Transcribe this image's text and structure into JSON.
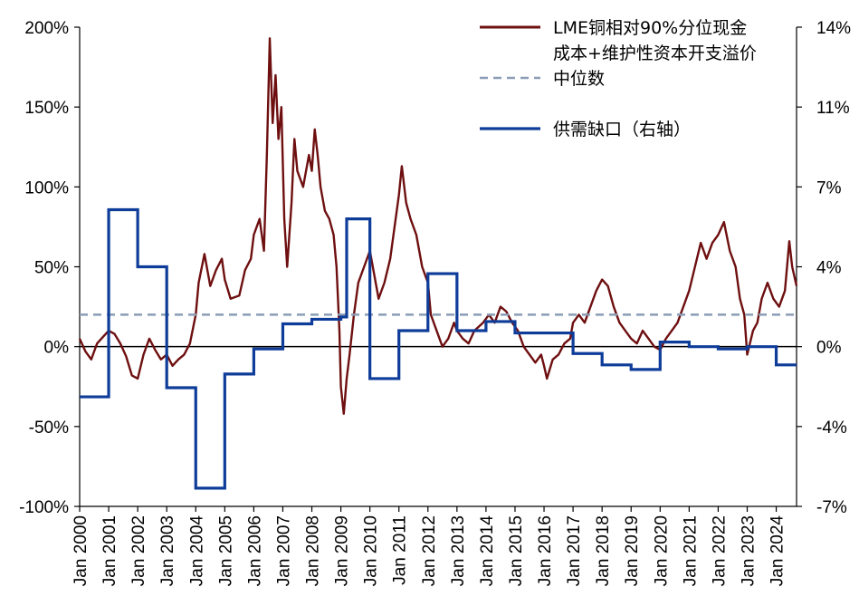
{
  "chart_data": {
    "type": "line",
    "x_range": [
      "Jan 2000",
      "Jun 2024"
    ],
    "x_tick_labels": [
      "Jan 2000",
      "Jan 2001",
      "Jan 2002",
      "Jan 2003",
      "Jan 2004",
      "Jan 2005",
      "Jan 2006",
      "Jan 2007",
      "Jan 2008",
      "Jan 2009",
      "Jan 2010",
      "Jan 2011",
      "Jan 2012",
      "Jan 2013",
      "Jan 2014",
      "Jan 2015",
      "Jan 2016",
      "Jan 2017",
      "Jan 2018",
      "Jan 2019",
      "Jan 2020",
      "Jan 2021",
      "Jan 2022",
      "Jan 2023",
      "Jan 2024"
    ],
    "y_left": {
      "min": -100,
      "max": 200,
      "step": 50,
      "tick_labels": [
        "200%",
        "150%",
        "100%",
        "50%",
        "0%",
        "-50%",
        "-100%"
      ]
    },
    "y_right": {
      "min": -7,
      "max": 14,
      "step": 3.5,
      "tick_labels": [
        "14%",
        "11%",
        "7%",
        "4%",
        "0%",
        "-4%",
        "-7%"
      ]
    },
    "series": [
      {
        "name": "LME铜相对90%分位现金成本+维护性资本开支溢价",
        "legend_lines": [
          "LME铜相对90%分位现金成本+维护性资本开支溢价"
        ],
        "axis": "left",
        "color": "#6e0f10",
        "style": "solid",
        "points": [
          [
            2000.0,
            5
          ],
          [
            2000.2,
            -3
          ],
          [
            2000.4,
            -8
          ],
          [
            2000.6,
            2
          ],
          [
            2000.8,
            6
          ],
          [
            2001.0,
            10
          ],
          [
            2001.2,
            8
          ],
          [
            2001.4,
            2
          ],
          [
            2001.6,
            -6
          ],
          [
            2001.8,
            -18
          ],
          [
            2002.0,
            -20
          ],
          [
            2002.2,
            -5
          ],
          [
            2002.4,
            5
          ],
          [
            2002.6,
            -2
          ],
          [
            2002.8,
            -8
          ],
          [
            2003.0,
            -5
          ],
          [
            2003.2,
            -12
          ],
          [
            2003.4,
            -8
          ],
          [
            2003.6,
            -5
          ],
          [
            2003.8,
            2
          ],
          [
            2004.0,
            20
          ],
          [
            2004.1,
            40
          ],
          [
            2004.3,
            58
          ],
          [
            2004.5,
            38
          ],
          [
            2004.7,
            48
          ],
          [
            2004.9,
            55
          ],
          [
            2005.0,
            42
          ],
          [
            2005.2,
            30
          ],
          [
            2005.5,
            32
          ],
          [
            2005.7,
            48
          ],
          [
            2005.9,
            55
          ],
          [
            2006.0,
            70
          ],
          [
            2006.2,
            80
          ],
          [
            2006.35,
            60
          ],
          [
            2006.45,
            120
          ],
          [
            2006.55,
            193
          ],
          [
            2006.65,
            140
          ],
          [
            2006.75,
            170
          ],
          [
            2006.85,
            130
          ],
          [
            2006.95,
            150
          ],
          [
            2007.05,
            80
          ],
          [
            2007.15,
            50
          ],
          [
            2007.3,
            90
          ],
          [
            2007.4,
            130
          ],
          [
            2007.5,
            110
          ],
          [
            2007.7,
            100
          ],
          [
            2007.9,
            120
          ],
          [
            2008.0,
            110
          ],
          [
            2008.1,
            136
          ],
          [
            2008.2,
            120
          ],
          [
            2008.3,
            100
          ],
          [
            2008.45,
            85
          ],
          [
            2008.6,
            80
          ],
          [
            2008.75,
            70
          ],
          [
            2008.85,
            50
          ],
          [
            2008.95,
            10
          ],
          [
            2009.0,
            -25
          ],
          [
            2009.1,
            -42
          ],
          [
            2009.2,
            -20
          ],
          [
            2009.3,
            -5
          ],
          [
            2009.45,
            20
          ],
          [
            2009.6,
            40
          ],
          [
            2009.8,
            50
          ],
          [
            2010.0,
            60
          ],
          [
            2010.15,
            45
          ],
          [
            2010.3,
            30
          ],
          [
            2010.5,
            40
          ],
          [
            2010.7,
            55
          ],
          [
            2010.85,
            75
          ],
          [
            2011.0,
            95
          ],
          [
            2011.1,
            113
          ],
          [
            2011.25,
            90
          ],
          [
            2011.4,
            80
          ],
          [
            2011.6,
            70
          ],
          [
            2011.8,
            50
          ],
          [
            2012.0,
            40
          ],
          [
            2012.1,
            20
          ],
          [
            2012.3,
            10
          ],
          [
            2012.5,
            0
          ],
          [
            2012.7,
            5
          ],
          [
            2012.9,
            15
          ],
          [
            2013.0,
            10
          ],
          [
            2013.2,
            5
          ],
          [
            2013.4,
            2
          ],
          [
            2013.6,
            10
          ],
          [
            2013.9,
            15
          ],
          [
            2014.1,
            20
          ],
          [
            2014.3,
            15
          ],
          [
            2014.5,
            25
          ],
          [
            2014.7,
            22
          ],
          [
            2014.9,
            15
          ],
          [
            2015.1,
            10
          ],
          [
            2015.3,
            0
          ],
          [
            2015.5,
            -5
          ],
          [
            2015.7,
            -10
          ],
          [
            2015.9,
            -5
          ],
          [
            2016.0,
            -12
          ],
          [
            2016.1,
            -20
          ],
          [
            2016.3,
            -8
          ],
          [
            2016.5,
            -5
          ],
          [
            2016.7,
            2
          ],
          [
            2016.9,
            5
          ],
          [
            2017.0,
            15
          ],
          [
            2017.2,
            20
          ],
          [
            2017.4,
            15
          ],
          [
            2017.6,
            25
          ],
          [
            2017.8,
            35
          ],
          [
            2018.0,
            42
          ],
          [
            2018.2,
            38
          ],
          [
            2018.4,
            25
          ],
          [
            2018.6,
            15
          ],
          [
            2018.8,
            10
          ],
          [
            2019.0,
            5
          ],
          [
            2019.2,
            2
          ],
          [
            2019.4,
            10
          ],
          [
            2019.6,
            5
          ],
          [
            2019.8,
            0
          ],
          [
            2020.0,
            -2
          ],
          [
            2020.2,
            5
          ],
          [
            2020.4,
            10
          ],
          [
            2020.6,
            15
          ],
          [
            2020.8,
            25
          ],
          [
            2021.0,
            35
          ],
          [
            2021.2,
            50
          ],
          [
            2021.4,
            65
          ],
          [
            2021.6,
            55
          ],
          [
            2021.8,
            65
          ],
          [
            2022.0,
            70
          ],
          [
            2022.2,
            78
          ],
          [
            2022.4,
            60
          ],
          [
            2022.6,
            50
          ],
          [
            2022.75,
            30
          ],
          [
            2022.9,
            20
          ],
          [
            2023.0,
            -5
          ],
          [
            2023.2,
            10
          ],
          [
            2023.35,
            15
          ],
          [
            2023.5,
            30
          ],
          [
            2023.7,
            40
          ],
          [
            2023.9,
            30
          ],
          [
            2024.1,
            25
          ],
          [
            2024.3,
            35
          ],
          [
            2024.45,
            66
          ],
          [
            2024.55,
            50
          ],
          [
            2024.7,
            38
          ]
        ]
      },
      {
        "name": "中位数",
        "legend_lines": [
          "中位数"
        ],
        "axis": "left",
        "color": "#8a9db5",
        "style": "dashed",
        "value": 20
      },
      {
        "name": "供需缺口（右轴）",
        "legend_lines": [
          "供需缺口（右轴）"
        ],
        "axis": "right",
        "color": "#0e3c99",
        "style": "step",
        "points": [
          [
            2000.0,
            -2.2
          ],
          [
            2001.0,
            6.0
          ],
          [
            2002.0,
            3.5
          ],
          [
            2003.0,
            -1.8
          ],
          [
            2004.0,
            -6.2
          ],
          [
            2005.0,
            -1.2
          ],
          [
            2006.0,
            -0.1
          ],
          [
            2007.0,
            1.0
          ],
          [
            2008.0,
            1.2
          ],
          [
            2009.0,
            1.3
          ],
          [
            2009.2,
            5.6
          ],
          [
            2010.0,
            -1.4
          ],
          [
            2011.0,
            0.7
          ],
          [
            2012.0,
            3.2
          ],
          [
            2013.0,
            0.7
          ],
          [
            2014.0,
            1.1
          ],
          [
            2015.0,
            0.6
          ],
          [
            2017.0,
            -0.3
          ],
          [
            2018.0,
            -0.8
          ],
          [
            2019.0,
            -1.0
          ],
          [
            2020.0,
            0.2
          ],
          [
            2021.0,
            0.0
          ],
          [
            2022.0,
            -0.1
          ],
          [
            2023.0,
            0.0
          ],
          [
            2024.0,
            -0.8
          ],
          [
            2024.7,
            -0.8
          ]
        ]
      }
    ]
  }
}
